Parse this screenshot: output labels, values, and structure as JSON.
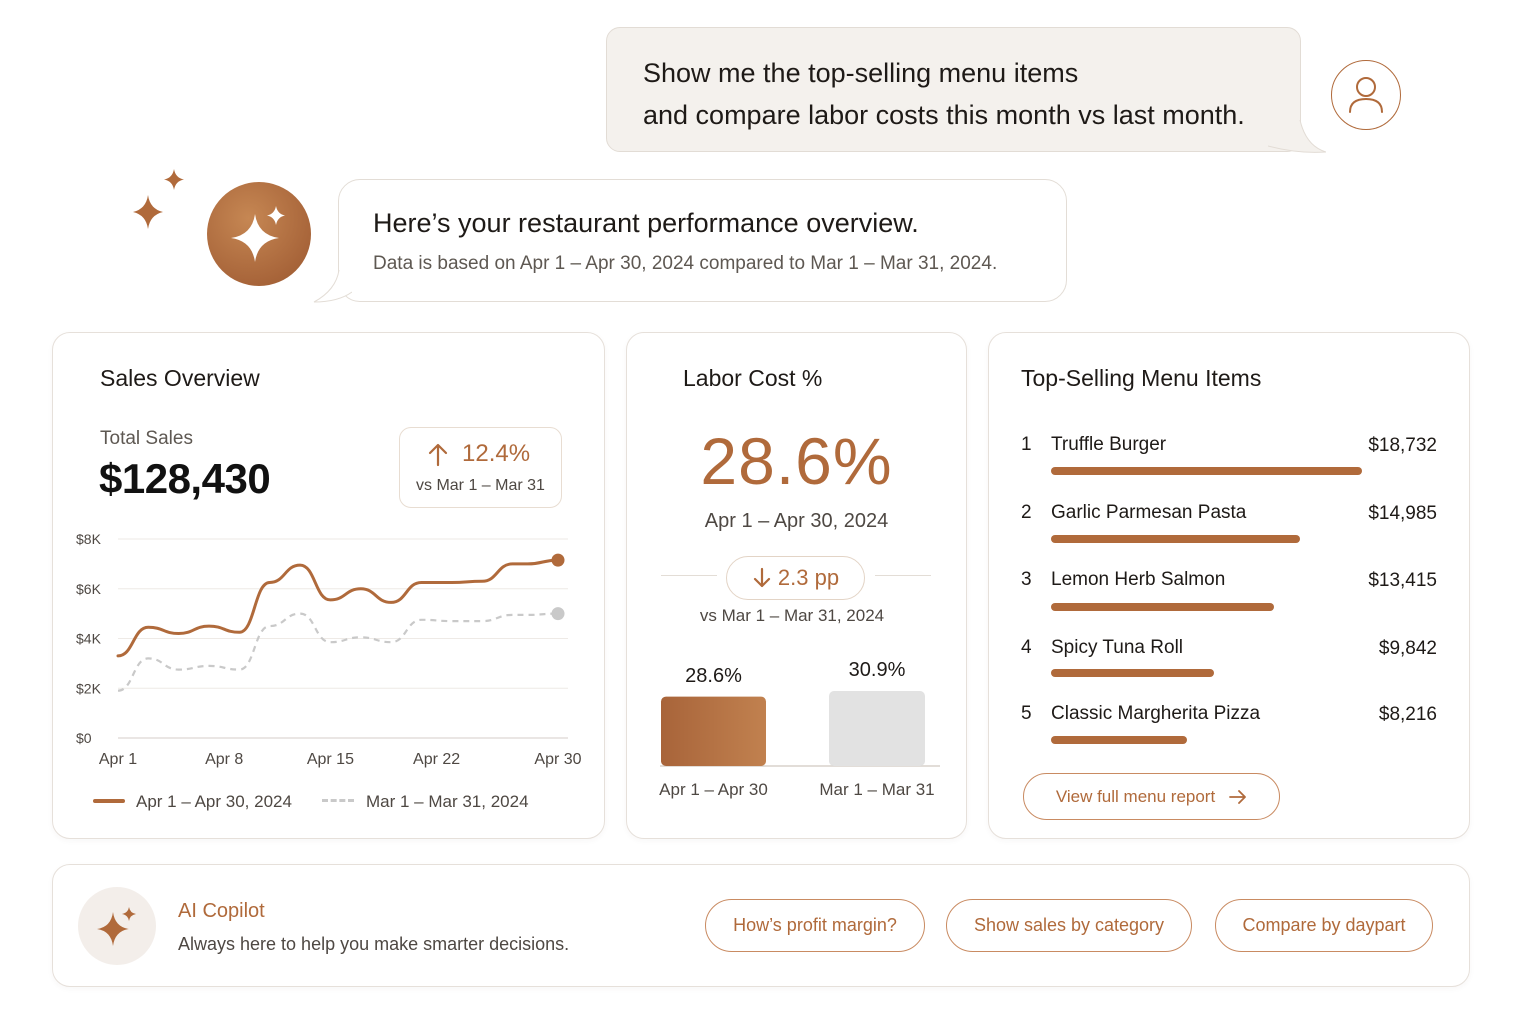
{
  "colors": {
    "accent": "#b06a3b",
    "prior": "#c9c9c9",
    "bar_prior": "#e2e2e2"
  },
  "user_message": {
    "line1": "Show me the top-selling menu items",
    "line2": "and compare labor costs this month vs last month.",
    "avatar_icon": "user-icon"
  },
  "assistant": {
    "avatar_icon": "sparkle-icon",
    "title": "Here’s your restaurant performance overview.",
    "subtitle": "Data is based on Apr 1 – Apr 30, 2024 compared to Mar 1 – Mar 31, 2024."
  },
  "sales": {
    "title": "Sales Overview",
    "total_label": "Total Sales",
    "total_value": "$128,430",
    "change": "12.4%",
    "change_direction": "up",
    "change_compare": "vs Mar 1 – Mar 31",
    "legend_current": "Apr 1 – Apr 30, 2024",
    "legend_prior": "Mar 1 – Mar 31, 2024"
  },
  "chart_data": {
    "type": "line",
    "y_ticks": [
      "$8K",
      "$6K",
      "$4K",
      "$2K",
      "$0"
    ],
    "x_ticks": [
      "Apr 1",
      "Apr 8",
      "Apr 15",
      "Apr 22",
      "Apr 30"
    ],
    "ylim": [
      0,
      8000
    ],
    "grid": true,
    "legend_position": "bottom",
    "x": [
      1,
      3,
      5,
      7,
      9,
      11,
      13,
      15,
      17,
      19,
      21,
      23,
      25,
      27,
      28,
      30
    ],
    "series": [
      {
        "name": "Apr 1 – Apr 30, 2024",
        "color": "#b06a3b",
        "style": "solid",
        "values": [
          3300,
          4450,
          4200,
          4500,
          4250,
          6250,
          6950,
          5550,
          6000,
          5450,
          6250,
          6250,
          6300,
          7000,
          7000,
          7150
        ]
      },
      {
        "name": "Mar 1 – Mar 31, 2024",
        "color": "#c9c9c9",
        "style": "dashed",
        "values": [
          1900,
          3200,
          2750,
          2900,
          2750,
          4500,
          5000,
          3850,
          4050,
          3850,
          4750,
          4700,
          4700,
          4950,
          4950,
          5000
        ]
      }
    ]
  },
  "labor": {
    "title": "Labor Cost %",
    "value": "28.6%",
    "period": "Apr 1 – Apr 30, 2024",
    "change": "2.3 pp",
    "change_direction": "down",
    "compare": "vs Mar 1 – Mar 31, 2024",
    "bars": [
      {
        "label": "28.6%",
        "period": "Apr 1 – Apr 30",
        "value": 28.6
      },
      {
        "label": "30.9%",
        "period": "Mar 1 – Mar 31",
        "value": 30.9
      }
    ]
  },
  "top_items": {
    "title": "Top-Selling Menu Items",
    "items": [
      {
        "rank": "1",
        "name": "Truffle Burger",
        "value": "$18,732",
        "amount": 18732
      },
      {
        "rank": "2",
        "name": "Garlic Parmesan Pasta",
        "value": "$14,985",
        "amount": 14985
      },
      {
        "rank": "3",
        "name": "Lemon Herb Salmon",
        "value": "$13,415",
        "amount": 13415
      },
      {
        "rank": "4",
        "name": "Spicy Tuna Roll",
        "value": "$9,842",
        "amount": 9842
      },
      {
        "rank": "5",
        "name": "Classic Margherita Pizza",
        "value": "$8,216",
        "amount": 8216
      }
    ],
    "view_button": "View full menu report",
    "view_icon": "arrow-right-icon"
  },
  "copilot": {
    "icon": "sparkle-icon",
    "title": "AI Copilot",
    "subtitle": "Always here to help you make smarter decisions.",
    "suggestions": [
      "How’s profit margin?",
      "Show sales by category",
      "Compare by daypart"
    ]
  }
}
